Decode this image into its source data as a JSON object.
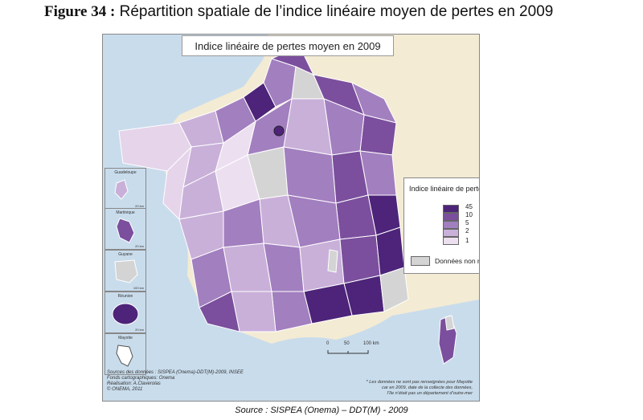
{
  "figure": {
    "number": "Figure 34 :",
    "title": "Répartition spatiale de l’indice linéaire moyen de pertes en 2009"
  },
  "map": {
    "title": "Indice linéaire de pertes moyen en 2009"
  },
  "legend": {
    "title": "Indice linéaire de pertes moyen",
    "classes": [
      {
        "label": "45",
        "color": "#4d2479"
      },
      {
        "label": "10",
        "color": "#7b4f9d"
      },
      {
        "label": "5",
        "color": "#a27fbf"
      },
      {
        "label": "2",
        "color": "#c9b0d9"
      },
      {
        "label": "1",
        "color": "#ece0f0"
      }
    ],
    "no_data": {
      "label": "Données non renseignées*",
      "color": "#d4d4d4"
    }
  },
  "insets": [
    "Guadeloupe",
    "Martinique",
    "Guyane",
    "Réunion",
    "Mayotte"
  ],
  "inset_scale": "20 km",
  "scale_bar": {
    "labels": [
      "0",
      "50",
      "100 km"
    ]
  },
  "sources": [
    "Sources des données : SISPEA (Onema)-DDT(M)-2009, INSEE",
    "Fonds cartographiques: Onema",
    "Réalisation: A.Claverolas",
    "© ONEMA, 2011"
  ],
  "footnote": [
    "* Les données ne sont pas renseignées pour Mayotte",
    "car en 2009, date de la collecte des données,",
    "l’île n’était pas un département d’outre-mer"
  ],
  "source_line": "Source : SISPEA (Onema) – DDT(M) - 2009",
  "colors": {
    "sea": "#c9dcec",
    "land": "#f3ebd4",
    "no_data": "#d4d4d4"
  }
}
